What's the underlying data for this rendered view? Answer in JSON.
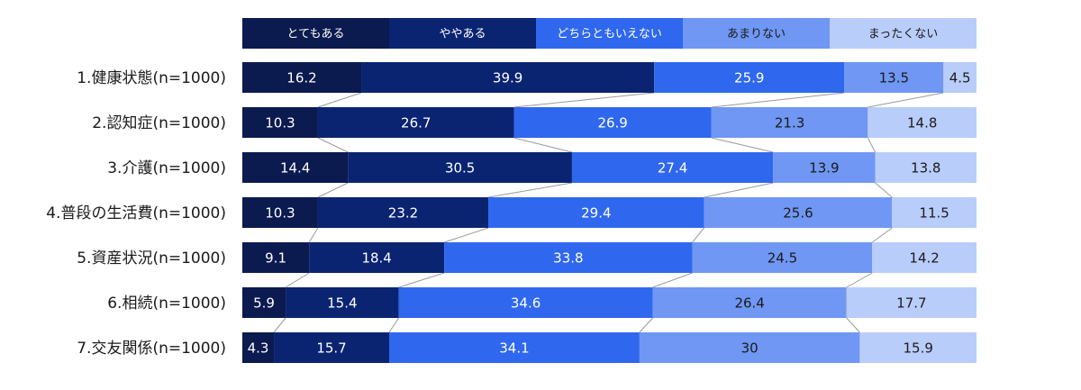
{
  "chart_data": {
    "type": "bar",
    "orientation": "horizontal",
    "stacked": true,
    "percent": true,
    "categories": [
      "1.健康状態(n=1000)",
      "2.認知症(n=1000)",
      "3.介護(n=1000)",
      "4.普段の生活費(n=1000)",
      "5.資産状況(n=1000)",
      "6.相続(n=1000)",
      "7.交友関係(n=1000)"
    ],
    "series": [
      {
        "name": "とてもある",
        "color": "#0b1a4f",
        "label_color": "#ffffff",
        "values": [
          16.2,
          10.3,
          14.4,
          10.3,
          9.1,
          5.9,
          4.3
        ]
      },
      {
        "name": "ややある",
        "color": "#0a2472",
        "label_color": "#ffffff",
        "values": [
          39.9,
          26.7,
          30.5,
          23.2,
          18.4,
          15.4,
          15.7
        ]
      },
      {
        "name": "どちらともいえない",
        "color": "#2f68ee",
        "label_color": "#ffffff",
        "values": [
          25.9,
          26.9,
          27.4,
          29.4,
          33.8,
          34.6,
          34.1
        ]
      },
      {
        "name": "あまりない",
        "color": "#6f97f3",
        "label_color": "#1a1a1a",
        "values": [
          13.5,
          21.3,
          13.9,
          25.6,
          24.5,
          26.4,
          30
        ]
      },
      {
        "name": "まったくない",
        "color": "#b9cdfa",
        "label_color": "#1a1a1a",
        "values": [
          4.5,
          14.8,
          13.8,
          11.5,
          14.2,
          17.7,
          15.9
        ]
      }
    ],
    "xlim": [
      0,
      100
    ],
    "legend_position": "top",
    "grid": false
  }
}
